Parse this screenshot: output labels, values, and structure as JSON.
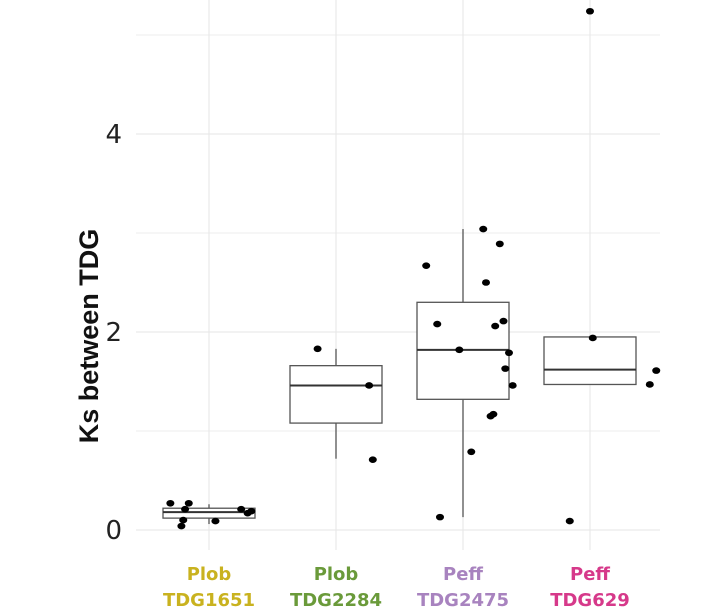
{
  "chart_data": {
    "type": "boxplot",
    "title": "",
    "xlabel": "",
    "ylabel": "Ks between TDG",
    "ylim": [
      -0.3,
      5.3
    ],
    "yticks": [
      0,
      2,
      4
    ],
    "ytick_labels": [
      "0",
      "2",
      "4"
    ],
    "minor_gridlines": [
      1,
      3,
      5
    ],
    "grid": true,
    "categories": [
      {
        "line1": "Plob",
        "line2": "TDG1651",
        "color": "#c9b21f",
        "box": {
          "q1": 0.12,
          "median": 0.18,
          "q3": 0.22,
          "whisker_low": 0.06,
          "whisker_high": 0.26
        },
        "points": [
          [
            -0.42,
            0.27
          ],
          [
            -0.3,
            0.04
          ],
          [
            -0.28,
            0.1
          ],
          [
            -0.26,
            0.21
          ],
          [
            -0.22,
            0.27
          ],
          [
            0.07,
            0.09
          ],
          [
            0.35,
            0.21
          ],
          [
            0.42,
            0.17
          ],
          [
            0.46,
            0.19
          ]
        ]
      },
      {
        "line1": "Plob",
        "line2": "TDG2284",
        "color": "#6a9a3a",
        "box": {
          "q1": 1.08,
          "median": 1.46,
          "q3": 1.66,
          "whisker_low": 0.72,
          "whisker_high": 1.83
        },
        "points": [
          [
            -0.2,
            1.83
          ],
          [
            0.36,
            1.46
          ],
          [
            0.4,
            0.71
          ]
        ]
      },
      {
        "line1": "Peff",
        "line2": "TDG2475",
        "color": "#a883bf",
        "box": {
          "q1": 1.32,
          "median": 1.82,
          "q3": 2.3,
          "whisker_low": 0.13,
          "whisker_high": 3.04
        },
        "points": [
          [
            -0.4,
            2.67
          ],
          [
            -0.28,
            2.08
          ],
          [
            -0.25,
            0.13
          ],
          [
            -0.04,
            1.82
          ],
          [
            0.09,
            0.79
          ],
          [
            0.22,
            3.04
          ],
          [
            0.25,
            2.5
          ],
          [
            0.3,
            1.15
          ],
          [
            0.33,
            1.17
          ],
          [
            0.35,
            2.06
          ],
          [
            0.4,
            2.89
          ],
          [
            0.44,
            2.11
          ],
          [
            0.46,
            1.63
          ],
          [
            0.5,
            1.79
          ],
          [
            0.54,
            1.46
          ]
        ]
      },
      {
        "line1": "Peff",
        "line2": "TDG629",
        "color": "#d6398a",
        "box": {
          "q1": 1.47,
          "median": 1.62,
          "q3": 1.95,
          "whisker_low": 1.47,
          "whisker_high": 1.95
        },
        "points": [
          [
            -0.22,
            0.09
          ],
          [
            0.0,
            5.24
          ],
          [
            0.03,
            1.94
          ],
          [
            0.65,
            1.47
          ],
          [
            0.72,
            1.61
          ]
        ]
      }
    ]
  }
}
